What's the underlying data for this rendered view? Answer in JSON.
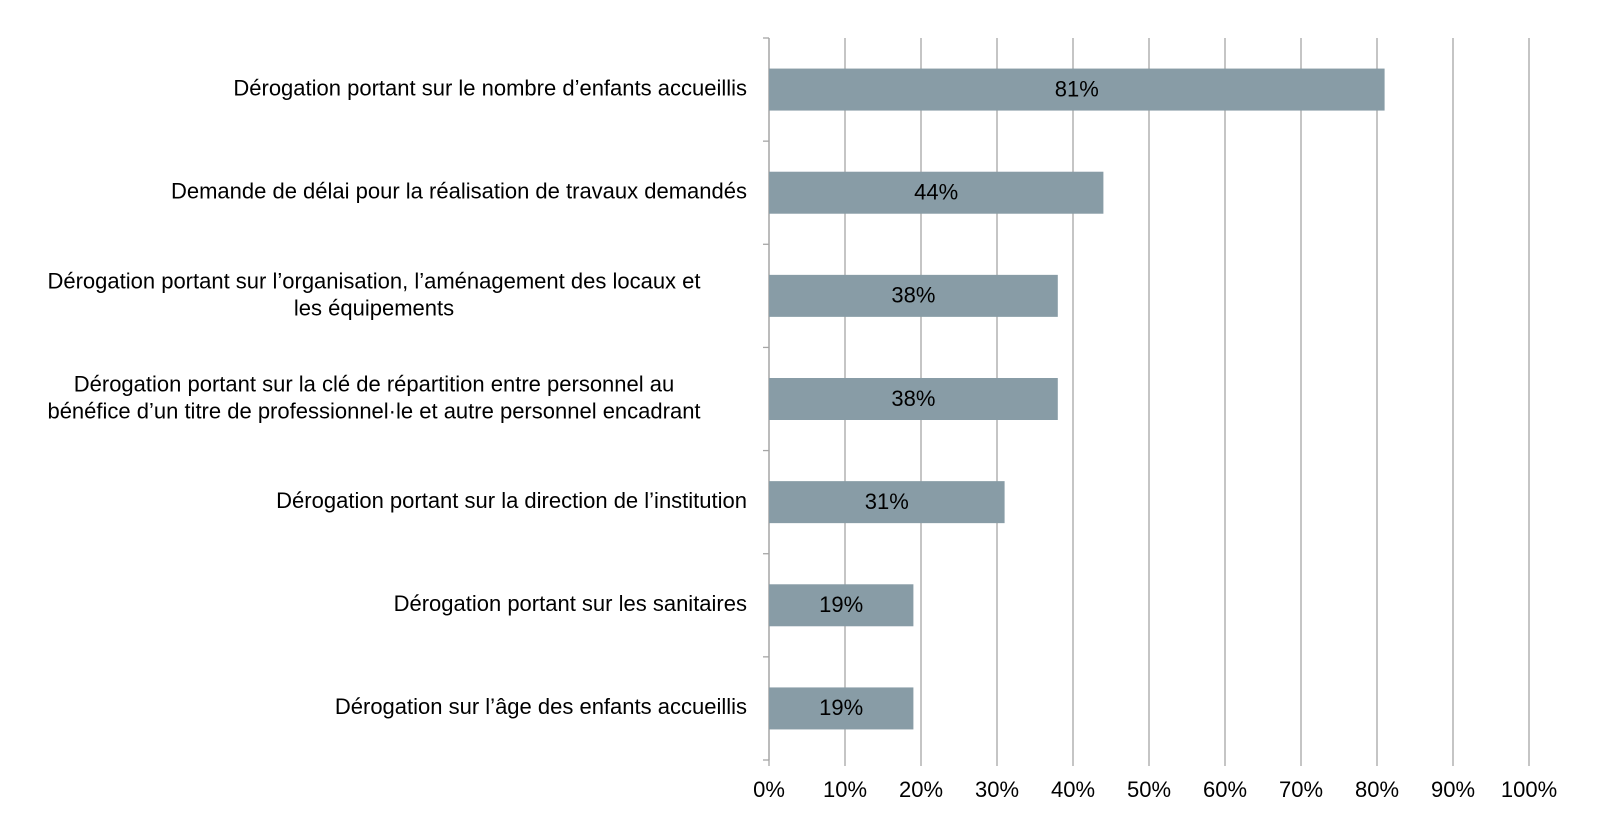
{
  "chart_data": {
    "type": "bar",
    "orientation": "horizontal",
    "categories": [
      "Dérogation portant sur le nombre d’enfants accueillis",
      "Demande de délai pour la réalisation de travaux demandés",
      "Dérogation portant sur l’organisation, l’aménagement des locaux et\nles équipements",
      "Dérogation portant sur la clé de répartition entre personnel au\nbénéfice d’un titre de professionnel·le et autre personnel encadrant",
      "Dérogation portant sur la direction de l’institution",
      "Dérogation portant sur les sanitaires",
      "Dérogation sur l’âge des enfants accueillis"
    ],
    "values": [
      81,
      44,
      38,
      38,
      31,
      19,
      19
    ],
    "value_labels": [
      "81%",
      "44%",
      "38%",
      "38%",
      "31%",
      "19%",
      "19%"
    ],
    "color": "#889ca6",
    "xlim": [
      0,
      100
    ],
    "xticks": [
      {
        "value": 0,
        "label": "0%"
      },
      {
        "value": 10,
        "label": "10%"
      },
      {
        "value": 20,
        "label": "20%"
      },
      {
        "value": 30,
        "label": "30%"
      },
      {
        "value": 40,
        "label": "40%"
      },
      {
        "value": 50,
        "label": "50%"
      },
      {
        "value": 60,
        "label": "60%"
      },
      {
        "value": 70,
        "label": "70%"
      },
      {
        "value": 80,
        "label": "80%"
      },
      {
        "value": 90,
        "label": "90%"
      },
      {
        "value": 100,
        "label": "100%"
      }
    ],
    "grid": true
  }
}
